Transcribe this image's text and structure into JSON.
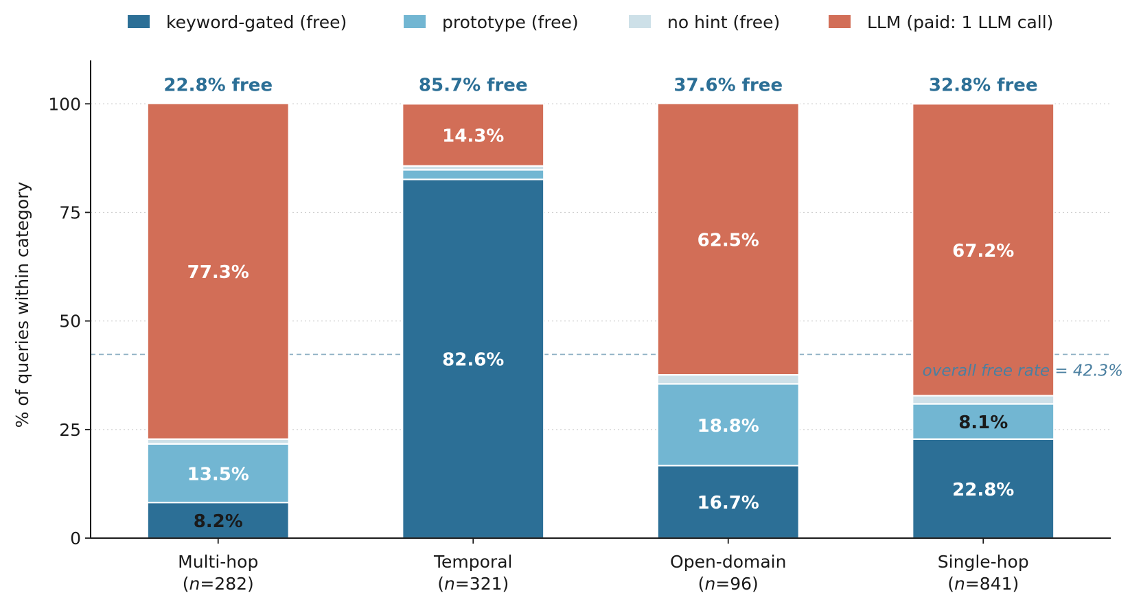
{
  "chart_data": {
    "type": "bar",
    "stacked": true,
    "ylabel": "% of queries within category",
    "ylim": [
      0,
      110
    ],
    "yticks": [
      0,
      25,
      50,
      75,
      100
    ],
    "grid": "horizontal dotted",
    "legend_position": "top",
    "categories": [
      {
        "name": "Multi-hop",
        "n_label": "282"
      },
      {
        "name": "Temporal",
        "n_label": "321"
      },
      {
        "name": "Open-domain",
        "n_label": "96"
      },
      {
        "name": "Single-hop",
        "n_label": "841"
      }
    ],
    "n_prefix": "n",
    "n_open": "(",
    "n_eq": "=",
    "n_close": ")",
    "series": [
      {
        "name": "keyword-gated  (free)",
        "color": "#2c6f96",
        "values": [
          8.2,
          82.6,
          16.7,
          22.8
        ],
        "labels": [
          "8.2%",
          "82.6%",
          "16.7%",
          "22.8%"
        ],
        "label_colors": [
          "#1a1a1a",
          "#ffffff",
          "#ffffff",
          "#ffffff"
        ]
      },
      {
        "name": "prototype  (free)",
        "color": "#72b6d2",
        "values": [
          13.5,
          2.2,
          18.8,
          8.1
        ],
        "labels": [
          "13.5%",
          "",
          "18.8%",
          "8.1%"
        ],
        "label_colors": [
          "#ffffff",
          "#ffffff",
          "#ffffff",
          "#1a1a1a"
        ]
      },
      {
        "name": "no hint  (free)",
        "color": "#cde0e8",
        "values": [
          1.1,
          0.9,
          2.1,
          1.9
        ],
        "labels": [
          "",
          "",
          "",
          ""
        ],
        "label_colors": [
          "#1a1a1a",
          "#1a1a1a",
          "#1a1a1a",
          "#1a1a1a"
        ]
      },
      {
        "name": "LLM  (paid: 1 LLM call)",
        "color": "#d26e57",
        "values": [
          77.3,
          14.3,
          62.5,
          67.2
        ],
        "labels": [
          "77.3%",
          "14.3%",
          "62.5%",
          "67.2%"
        ],
        "label_colors": [
          "#ffffff",
          "#ffffff",
          "#ffffff",
          "#ffffff"
        ]
      }
    ],
    "free_labels": [
      "22.8% free",
      "85.7% free",
      "37.6% free",
      "32.8% free"
    ],
    "free_label_color": "#2c6f96",
    "reference_line": {
      "value": 42.3,
      "label": "overall free rate = 42.3%",
      "color": "#8fb1c4",
      "label_color": "#4a7fa0"
    }
  }
}
